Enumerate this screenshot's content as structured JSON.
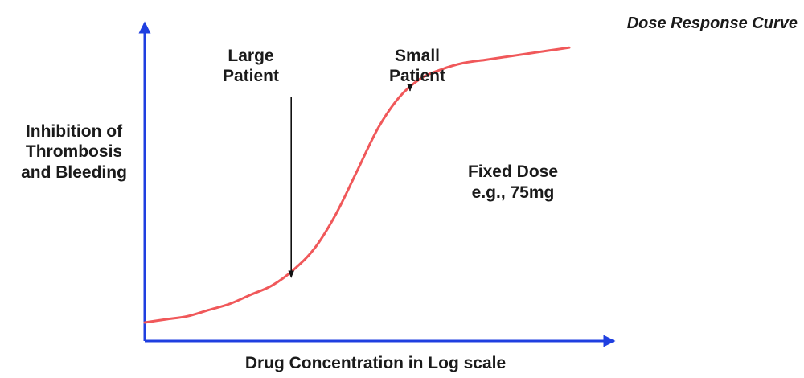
{
  "chart_data": {
    "type": "line",
    "title": "Dose Response Curve",
    "xlabel": "Drug Concentration in Log scale",
    "ylabel_lines": [
      "Inhibition of",
      "Thrombosis",
      "and Bleeding"
    ],
    "x_range": [
      0,
      100
    ],
    "y_range": [
      0,
      100
    ],
    "axis_color": "#1f3fe0",
    "curve_color": "#f0585a",
    "series": [
      {
        "x": [
          0,
          5,
          10,
          15,
          20,
          25,
          30,
          35,
          40,
          45,
          50,
          55,
          60,
          65,
          70,
          75,
          80,
          85,
          90,
          95,
          100
        ],
        "values": [
          6,
          7,
          8,
          10,
          12,
          15,
          18,
          23,
          30,
          41,
          55,
          69,
          79,
          85,
          88,
          90,
          91,
          92,
          93,
          94,
          95
        ]
      }
    ],
    "annotations": [
      {
        "lines": [
          "Large",
          "Patient"
        ],
        "arrow_x": 34.5,
        "arrow_y": 18
      },
      {
        "lines": [
          "Small",
          "Patient"
        ],
        "arrow_x": 62.5,
        "arrow_y": 80
      },
      {
        "lines": [
          "Fixed Dose",
          "e.g., 75mg"
        ]
      }
    ]
  }
}
